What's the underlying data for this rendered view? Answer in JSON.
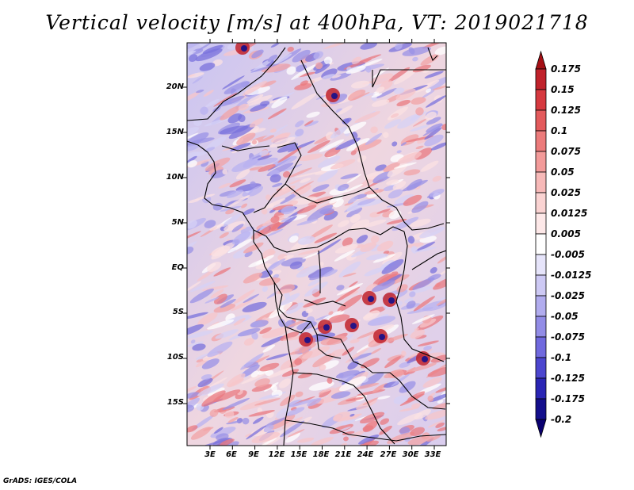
{
  "title": "Vertical velocity [m/s] at 400hPa, VT: 2019021718",
  "credit": "GrADS: IGES/COLA",
  "lat_labels": [
    "20N",
    "15N",
    "10N",
    "5N",
    "EQ",
    "5S",
    "10S",
    "15S"
  ],
  "lon_labels": [
    "3E",
    "6E",
    "9E",
    "12E",
    "15E",
    "18E",
    "21E",
    "24E",
    "27E",
    "30E",
    "33E"
  ],
  "colorbar": {
    "labels": [
      "0.175",
      "0.15",
      "0.125",
      "0.1",
      "0.075",
      "0.05",
      "0.025",
      "0.0125",
      "0.005",
      "-0.005",
      "-0.0125",
      "-0.025",
      "-0.05",
      "-0.075",
      "-0.1",
      "-0.125",
      "-0.175",
      "-0.2"
    ],
    "colors": [
      "#a50f15",
      "#c0222b",
      "#d6393f",
      "#e35a5c",
      "#ec7b7b",
      "#f39b9a",
      "#f7b9b8",
      "#fad3d2",
      "#fde8e8",
      "#ffffff",
      "#e6e4fa",
      "#cdc9f4",
      "#b1acee",
      "#928ce6",
      "#7069de",
      "#4c46cf",
      "#2a25b4",
      "#140f8c",
      "#0a0070"
    ],
    "over_color": "#a50f15",
    "under_color": "#0a0070"
  }
}
